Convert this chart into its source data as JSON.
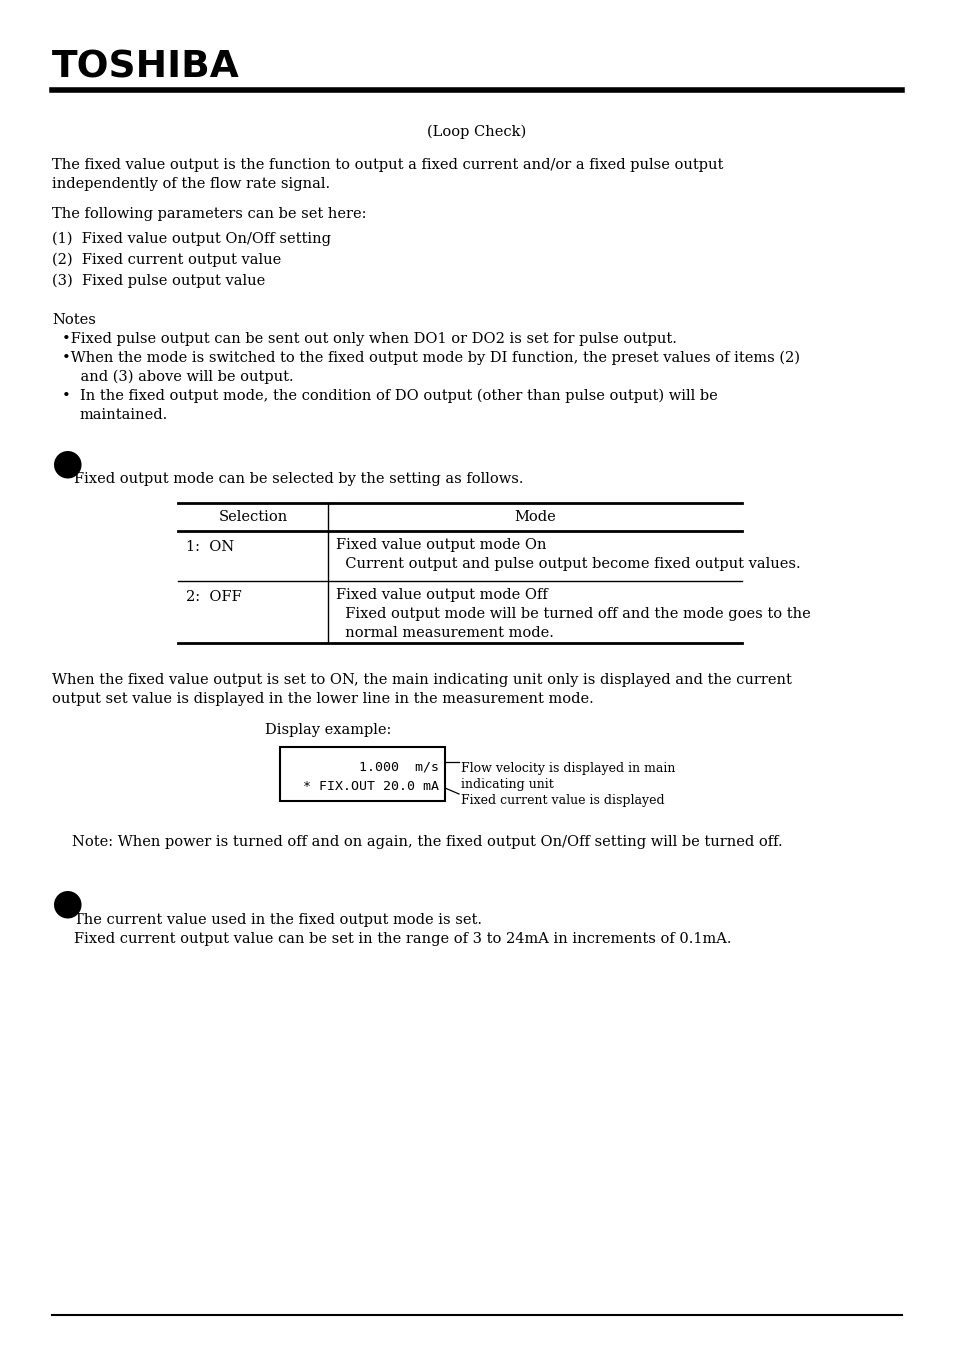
{
  "bg_color": "#ffffff",
  "text_color": "#000000",
  "title_text": "TOSHIBA",
  "loop_check": "(Loop Check)",
  "intro_line1": "The fixed value output is the function to output a fixed current and/or a fixed pulse output",
  "intro_line2": "independently of the flow rate signal.",
  "following_para": "The following parameters can be set here:",
  "item1": "(1)  Fixed value output On/Off setting",
  "item2": "(2)  Fixed current output value",
  "item3": "(3)  Fixed pulse output value",
  "notes_title": "Notes",
  "note1": "Fixed pulse output can be sent out only when DO1 or DO2 is set for pulse output.",
  "note2a": "When the mode is switched to the fixed output mode by DI function, the preset values of items (2)",
  "note2b": "    and (3) above will be output.",
  "note3a": "In the fixed output mode, the condition of DO output (other than pulse output) will be",
  "note3b": "  maintained.",
  "section1_text": "Fixed output mode can be selected by the setting as follows.",
  "table_header_sel": "Selection",
  "table_header_mode": "Mode",
  "row1_sel": "1:  ON",
  "row1_mode1": "Fixed value output mode On",
  "row1_mode2": "  Current output and pulse output become fixed output values.",
  "row2_sel": "2:  OFF",
  "row2_mode1": "Fixed value output mode Off",
  "row2_mode2": "  Fixed output mode will be turned off and the mode goes to the",
  "row2_mode3": "  normal measurement mode.",
  "when_line1": "When the fixed value output is set to ON, the main indicating unit only is displayed and the current",
  "when_line2": "output set value is displayed in the lower line in the measurement mode.",
  "display_example": "Display example:",
  "display_line1": "   1.000  m/s",
  "display_line2": "* FIX.OUT 20.0 mA",
  "ann1_line1": "Flow velocity is displayed in main",
  "ann1_line2": "indicating unit",
  "ann2": "Fixed current value is displayed",
  "note_power": "Note: When power is turned off and on again, the fixed output On/Off setting will be turned off.",
  "sec2_text1": "The current value used in the fixed output mode is set.",
  "sec2_text2": "Fixed current output value can be set in the range of 3 to 24mA in increments of 0.1mA."
}
